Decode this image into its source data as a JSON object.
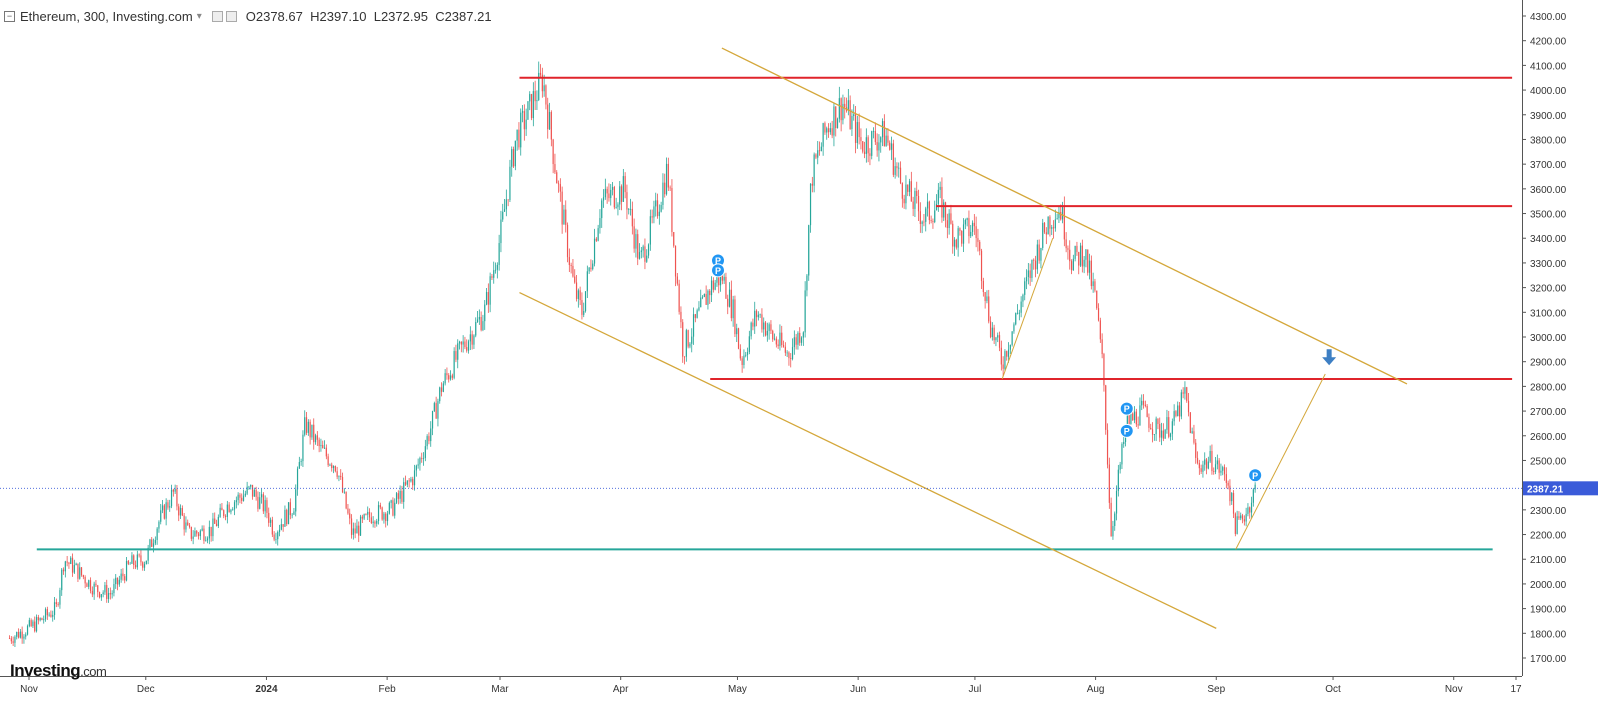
{
  "header": {
    "collapse_glyph": "−",
    "symbol": "Ethereum, 300, Investing.com",
    "open_label": "O",
    "open": "2378.67",
    "high_label": "H",
    "high": "2397.10",
    "low_label": "L",
    "low": "2372.95",
    "close_label": "C",
    "close": "2387.21"
  },
  "brand": {
    "name": "Investing",
    "suffix": ".com"
  },
  "colors": {
    "up": "#26a69a",
    "down": "#ef5350",
    "support_line": "#26a69a",
    "resistance": "#e0242b",
    "channel": "#d4a73a",
    "marker": "#2196f3",
    "price_tag": "#3a5bd9"
  },
  "chart_data": {
    "type": "candlestick",
    "title": "Ethereum, 300, Investing.com",
    "interval": "300",
    "x_ticks": [
      "Nov",
      "Dec",
      "2024",
      "Feb",
      "Mar",
      "Apr",
      "May",
      "Jun",
      "Jul",
      "Aug",
      "Sep",
      "Oct",
      "Nov",
      "17"
    ],
    "y_ticks": [
      "4300.00",
      "4200.00",
      "4100.00",
      "4000.00",
      "3900.00",
      "3800.00",
      "3700.00",
      "3600.00",
      "3500.00",
      "3400.00",
      "3300.00",
      "3200.00",
      "3100.00",
      "3000.00",
      "2900.00",
      "2800.00",
      "2700.00",
      "2600.00",
      "2500.00",
      "2400.00",
      "2300.00",
      "2200.00",
      "2100.00",
      "2000.00",
      "1900.00",
      "1800.00",
      "1700.00"
    ],
    "ylim": [
      1650,
      4350
    ],
    "last_price": 2387.21,
    "last_price_label": "2387.21",
    "price_path": [
      {
        "date": "2023-10-27",
        "price": 1780
      },
      {
        "date": "2023-11-02",
        "price": 1830
      },
      {
        "date": "2023-11-08",
        "price": 1900
      },
      {
        "date": "2023-11-10",
        "price": 2100
      },
      {
        "date": "2023-11-13",
        "price": 2060
      },
      {
        "date": "2023-11-18",
        "price": 1980
      },
      {
        "date": "2023-11-22",
        "price": 1960
      },
      {
        "date": "2023-11-27",
        "price": 2080
      },
      {
        "date": "2023-12-01",
        "price": 2100
      },
      {
        "date": "2023-12-04",
        "price": 2240
      },
      {
        "date": "2023-12-08",
        "price": 2370
      },
      {
        "date": "2023-12-12",
        "price": 2200
      },
      {
        "date": "2023-12-18",
        "price": 2220
      },
      {
        "date": "2023-12-22",
        "price": 2320
      },
      {
        "date": "2023-12-28",
        "price": 2380
      },
      {
        "date": "2024-01-01",
        "price": 2300
      },
      {
        "date": "2024-01-03",
        "price": 2210
      },
      {
        "date": "2024-01-08",
        "price": 2320
      },
      {
        "date": "2024-01-11",
        "price": 2650
      },
      {
        "date": "2024-01-15",
        "price": 2540
      },
      {
        "date": "2024-01-19",
        "price": 2480
      },
      {
        "date": "2024-01-23",
        "price": 2200
      },
      {
        "date": "2024-01-28",
        "price": 2280
      },
      {
        "date": "2024-02-02",
        "price": 2300
      },
      {
        "date": "2024-02-08",
        "price": 2440
      },
      {
        "date": "2024-02-12",
        "price": 2620
      },
      {
        "date": "2024-02-15",
        "price": 2800
      },
      {
        "date": "2024-02-20",
        "price": 2950
      },
      {
        "date": "2024-02-26",
        "price": 3100
      },
      {
        "date": "2024-03-01",
        "price": 3400
      },
      {
        "date": "2024-03-05",
        "price": 3800
      },
      {
        "date": "2024-03-08",
        "price": 3900
      },
      {
        "date": "2024-03-12",
        "price": 4050
      },
      {
        "date": "2024-03-16",
        "price": 3600
      },
      {
        "date": "2024-03-20",
        "price": 3200
      },
      {
        "date": "2024-03-22",
        "price": 3100
      },
      {
        "date": "2024-03-27",
        "price": 3550
      },
      {
        "date": "2024-04-02",
        "price": 3600
      },
      {
        "date": "2024-04-06",
        "price": 3300
      },
      {
        "date": "2024-04-10",
        "price": 3500
      },
      {
        "date": "2024-04-13",
        "price": 3680
      },
      {
        "date": "2024-04-17",
        "price": 2950
      },
      {
        "date": "2024-04-20",
        "price": 3050
      },
      {
        "date": "2024-04-24",
        "price": 3200
      },
      {
        "date": "2024-04-27",
        "price": 3250
      },
      {
        "date": "2024-04-30",
        "price": 3100
      },
      {
        "date": "2024-05-02",
        "price": 2900
      },
      {
        "date": "2024-05-06",
        "price": 3100
      },
      {
        "date": "2024-05-10",
        "price": 3000
      },
      {
        "date": "2024-05-14",
        "price": 2930
      },
      {
        "date": "2024-05-18",
        "price": 3050
      },
      {
        "date": "2024-05-20",
        "price": 3650
      },
      {
        "date": "2024-05-24",
        "price": 3850
      },
      {
        "date": "2024-05-28",
        "price": 3950
      },
      {
        "date": "2024-06-02",
        "price": 3780
      },
      {
        "date": "2024-06-08",
        "price": 3820
      },
      {
        "date": "2024-06-12",
        "price": 3620
      },
      {
        "date": "2024-06-18",
        "price": 3480
      },
      {
        "date": "2024-06-22",
        "price": 3550
      },
      {
        "date": "2024-06-26",
        "price": 3400
      },
      {
        "date": "2024-07-01",
        "price": 3450
      },
      {
        "date": "2024-07-05",
        "price": 3050
      },
      {
        "date": "2024-07-08",
        "price": 2900
      },
      {
        "date": "2024-07-12",
        "price": 3100
      },
      {
        "date": "2024-07-16",
        "price": 3300
      },
      {
        "date": "2024-07-20",
        "price": 3480
      },
      {
        "date": "2024-07-23",
        "price": 3520
      },
      {
        "date": "2024-07-26",
        "price": 3300
      },
      {
        "date": "2024-07-29",
        "price": 3350
      },
      {
        "date": "2024-08-01",
        "price": 3150
      },
      {
        "date": "2024-08-03",
        "price": 2850
      },
      {
        "date": "2024-08-05",
        "price": 2200
      },
      {
        "date": "2024-08-07",
        "price": 2450
      },
      {
        "date": "2024-08-09",
        "price": 2650
      },
      {
        "date": "2024-08-13",
        "price": 2700
      },
      {
        "date": "2024-08-17",
        "price": 2620
      },
      {
        "date": "2024-08-21",
        "price": 2650
      },
      {
        "date": "2024-08-24",
        "price": 2770
      },
      {
        "date": "2024-08-27",
        "price": 2480
      },
      {
        "date": "2024-08-31",
        "price": 2500
      },
      {
        "date": "2024-09-04",
        "price": 2420
      },
      {
        "date": "2024-09-06",
        "price": 2230
      },
      {
        "date": "2024-09-09",
        "price": 2300
      },
      {
        "date": "2024-09-11",
        "price": 2387.21
      }
    ],
    "drawings": {
      "horizontal_levels": [
        {
          "role": "resistance",
          "price": 4050,
          "from": "2024-03-06",
          "to": "2024-11-16"
        },
        {
          "role": "resistance",
          "price": 3530,
          "from": "2024-06-21",
          "to": "2024-11-16"
        },
        {
          "role": "resistance",
          "price": 2830,
          "from": "2024-04-24",
          "to": "2024-11-16"
        },
        {
          "role": "support",
          "price": 2140,
          "from": "2023-11-03",
          "to": "2024-11-11"
        }
      ],
      "trendlines": [
        {
          "role": "channel-upper",
          "from": {
            "date": "2024-04-27",
            "price": 4170
          },
          "to": {
            "date": "2024-10-20",
            "price": 2810
          }
        },
        {
          "role": "channel-lower",
          "from": {
            "date": "2024-03-06",
            "price": 3180
          },
          "to": {
            "date": "2024-09-01",
            "price": 1820
          }
        },
        {
          "role": "projection",
          "from": {
            "date": "2024-09-06",
            "price": 2140
          },
          "to": {
            "date": "2024-09-29",
            "price": 2850
          }
        },
        {
          "role": "projection-minor",
          "from": {
            "date": "2024-07-08",
            "price": 2830
          },
          "to": {
            "date": "2024-07-21",
            "price": 3400
          }
        }
      ],
      "arrow": {
        "direction": "down",
        "date": "2024-09-30",
        "price": 2910
      },
      "event_markers": [
        {
          "label": "P",
          "date": "2024-04-26",
          "price": 3310
        },
        {
          "label": "P",
          "date": "2024-04-26",
          "price": 3270
        },
        {
          "label": "P",
          "date": "2024-08-09",
          "price": 2710
        },
        {
          "label": "P",
          "date": "2024-08-09",
          "price": 2620
        },
        {
          "label": "P",
          "date": "2024-09-11",
          "price": 2440
        }
      ]
    }
  }
}
